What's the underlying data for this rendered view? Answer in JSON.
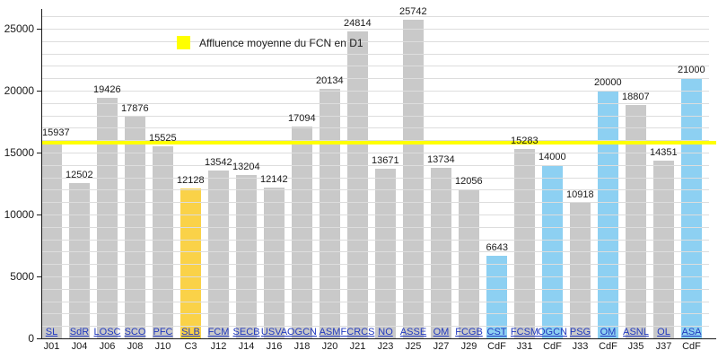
{
  "chart_data": {
    "type": "bar",
    "title": "",
    "xlabel": "",
    "ylabel": "",
    "ylim": [
      0,
      26600
    ],
    "yticks": [
      0,
      5000,
      10000,
      15000,
      20000,
      25000
    ],
    "grid": {
      "on": true,
      "step": 1000,
      "max": 26000
    },
    "legend": [
      {
        "label": "Affluence moyenne du FCN en D1",
        "color": "#ffff00",
        "position": "top-left-inside"
      }
    ],
    "average_line": {
      "value": 15800,
      "color": "#ffff00"
    },
    "colors": {
      "d1_bar": "#c9c9c9",
      "c3_bar": "#fad248",
      "cdf_bar": "#8dd0f2",
      "team_link": "#2139bf",
      "grid": "#dddddd",
      "axis": "#1a1a1a"
    },
    "bars": [
      {
        "team": "SL",
        "day": "J01",
        "value": 15937,
        "competition": "d1"
      },
      {
        "team": "SdR",
        "day": "J04",
        "value": 12502,
        "competition": "d1"
      },
      {
        "team": "LOSC",
        "day": "J06",
        "value": 19426,
        "competition": "d1"
      },
      {
        "team": "SCO",
        "day": "J08",
        "value": 17876,
        "competition": "d1"
      },
      {
        "team": "PFC",
        "day": "J10",
        "value": 15525,
        "competition": "d1"
      },
      {
        "team": "SLB",
        "day": "C3",
        "value": 12128,
        "competition": "c3"
      },
      {
        "team": "FCM",
        "day": "J12",
        "value": 13542,
        "competition": "d1"
      },
      {
        "team": "SECB",
        "day": "J14",
        "value": 13204,
        "competition": "d1"
      },
      {
        "team": "USVA",
        "day": "J16",
        "value": 12142,
        "competition": "d1"
      },
      {
        "team": "OGCN",
        "day": "J18",
        "value": 17094,
        "competition": "d1"
      },
      {
        "team": "ASM",
        "day": "J20",
        "value": 20134,
        "competition": "d1"
      },
      {
        "team": "FCRCS",
        "day": "J21",
        "value": 24814,
        "competition": "d1"
      },
      {
        "team": "NO",
        "day": "J23",
        "value": 13671,
        "competition": "d1"
      },
      {
        "team": "ASSE",
        "day": "J25",
        "value": 25742,
        "competition": "d1"
      },
      {
        "team": "OM",
        "day": "J27",
        "value": 13734,
        "competition": "d1"
      },
      {
        "team": "FCGB",
        "day": "J29",
        "value": 12056,
        "competition": "d1"
      },
      {
        "team": "CST",
        "day": "CdF",
        "value": 6643,
        "competition": "cdf"
      },
      {
        "team": "FCSM",
        "day": "J31",
        "value": 15283,
        "competition": "d1"
      },
      {
        "team": "OGCN",
        "day": "CdF",
        "value": 14000,
        "competition": "cdf"
      },
      {
        "team": "PSG",
        "day": "J33",
        "value": 10918,
        "competition": "d1"
      },
      {
        "team": "OM",
        "day": "CdF",
        "value": 20000,
        "competition": "cdf"
      },
      {
        "team": "ASNL",
        "day": "J35",
        "value": 18807,
        "competition": "d1"
      },
      {
        "team": "OL",
        "day": "J37",
        "value": 14351,
        "competition": "d1"
      },
      {
        "team": "ASA",
        "day": "CdF",
        "value": 21000,
        "competition": "cdf"
      }
    ]
  }
}
